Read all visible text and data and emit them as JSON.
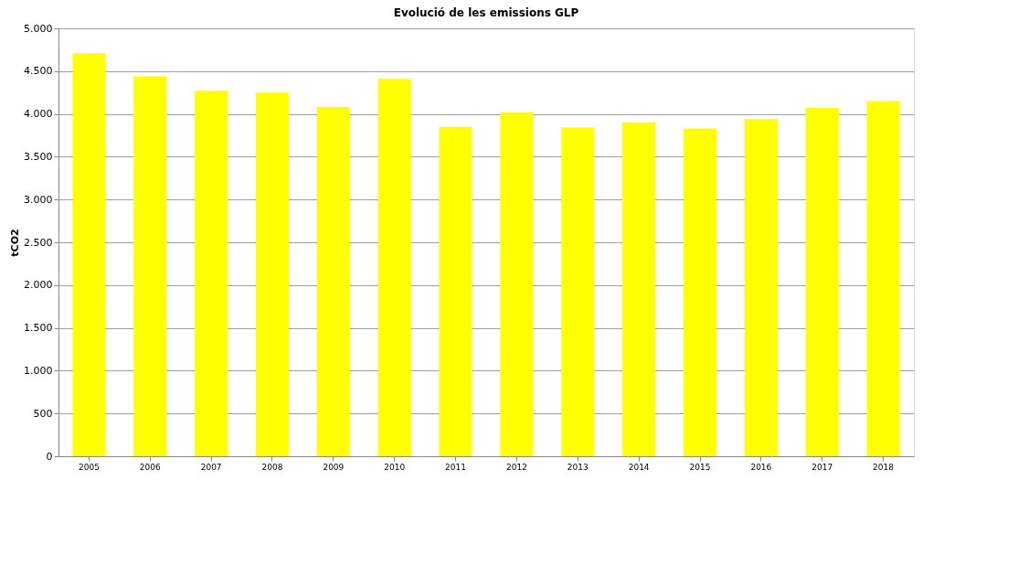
{
  "chart_data": {
    "type": "bar",
    "title": "Evolució de les emissions GLP",
    "ylabel": "tCO2",
    "categories": [
      "2005",
      "2006",
      "2007",
      "2008",
      "2009",
      "2010",
      "2011",
      "2012",
      "2013",
      "2014",
      "2015",
      "2016",
      "2017",
      "2018"
    ],
    "values": [
      4710,
      4440,
      4270,
      4250,
      4080,
      4410,
      3850,
      4020,
      3840,
      3900,
      3830,
      3940,
      4070,
      4150
    ],
    "color": "#ffff00",
    "ylim": [
      0,
      5000
    ],
    "yticks": [
      0,
      500,
      {
        "value": 1000,
        "label": "1.000"
      },
      {
        "value": 1500,
        "label": "1.500"
      },
      {
        "value": 2000,
        "label": "2.000"
      },
      {
        "value": 2500,
        "label": "2.500"
      },
      {
        "value": 3000,
        "label": "3.000"
      },
      {
        "value": 3500,
        "label": "3.500"
      },
      {
        "value": 4000,
        "label": "4.000"
      },
      {
        "value": 4500,
        "label": "4.500"
      },
      {
        "value": 5000,
        "label": "5.000"
      }
    ],
    "grid": "y"
  }
}
